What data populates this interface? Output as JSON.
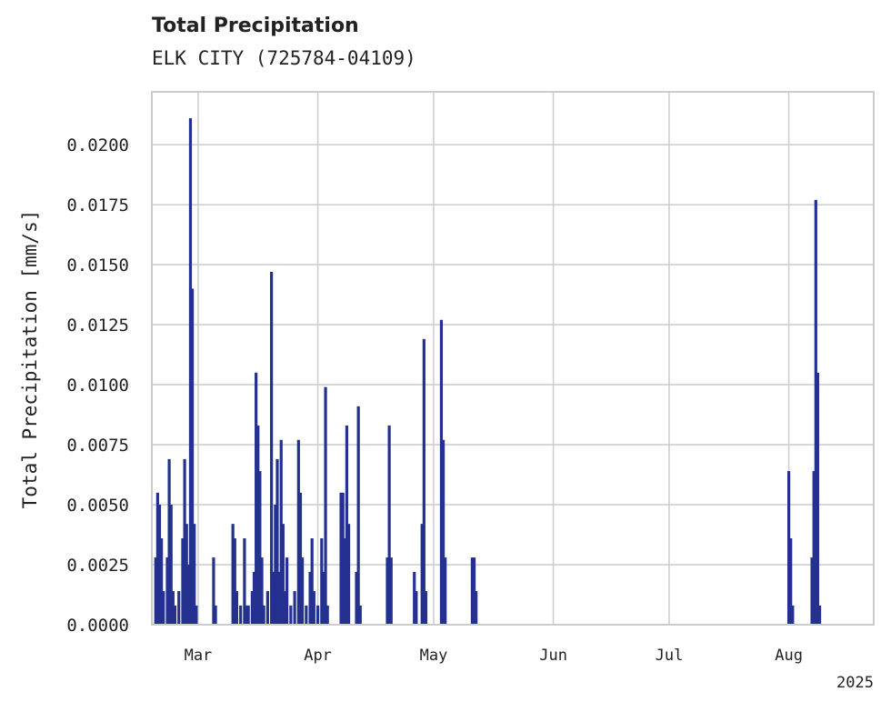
{
  "chart_data": {
    "type": "bar",
    "title": "Total Precipitation",
    "subtitle": "ELK CITY (725784-04109)",
    "xlabel": "",
    "ylabel": "Total Precipitation [mm/s]",
    "ylim": [
      0,
      0.0222
    ],
    "xlim": [
      "2025-02-17",
      "2025-08-23"
    ],
    "yticks": [
      "0.0000",
      "0.0025",
      "0.0050",
      "0.0075",
      "0.0100",
      "0.0125",
      "0.0150",
      "0.0175",
      "0.0200"
    ],
    "xticks": [
      {
        "date": "2025-03-01",
        "label": "Mar"
      },
      {
        "date": "2025-04-01",
        "label": "Apr"
      },
      {
        "date": "2025-05-01",
        "label": "May"
      },
      {
        "date": "2025-06-01",
        "label": "Jun"
      },
      {
        "date": "2025-07-01",
        "label": "Jul"
      },
      {
        "date": "2025-08-01",
        "label": "Aug"
      }
    ],
    "year_label": "2025",
    "grid": true,
    "color": "#24318f",
    "points": [
      {
        "x": "2025-02-18",
        "y": 0.0028
      },
      {
        "x": "2025-02-18T12:00",
        "y": 0.0055
      },
      {
        "x": "2025-02-19",
        "y": 0.005
      },
      {
        "x": "2025-02-19T12:00",
        "y": 0.0036
      },
      {
        "x": "2025-02-20",
        "y": 0.0014
      },
      {
        "x": "2025-02-21",
        "y": 0.0028
      },
      {
        "x": "2025-02-21T12:00",
        "y": 0.0069
      },
      {
        "x": "2025-02-22",
        "y": 0.005
      },
      {
        "x": "2025-02-22T12:00",
        "y": 0.0014
      },
      {
        "x": "2025-02-23",
        "y": 0.0008
      },
      {
        "x": "2025-02-24",
        "y": 0.0014
      },
      {
        "x": "2025-02-25",
        "y": 0.0036
      },
      {
        "x": "2025-02-25T12:00",
        "y": 0.0069
      },
      {
        "x": "2025-02-26",
        "y": 0.0042
      },
      {
        "x": "2025-02-26T12:00",
        "y": 0.0025
      },
      {
        "x": "2025-02-27",
        "y": 0.0211
      },
      {
        "x": "2025-02-27T12:00",
        "y": 0.014
      },
      {
        "x": "2025-02-28",
        "y": 0.0042
      },
      {
        "x": "2025-02-28T12:00",
        "y": 0.0008
      },
      {
        "x": "2025-03-05",
        "y": 0.0028
      },
      {
        "x": "2025-03-05T12:00",
        "y": 0.0008
      },
      {
        "x": "2025-03-10",
        "y": 0.0042
      },
      {
        "x": "2025-03-10T12:00",
        "y": 0.0036
      },
      {
        "x": "2025-03-11",
        "y": 0.0014
      },
      {
        "x": "2025-03-12",
        "y": 0.0008
      },
      {
        "x": "2025-03-13",
        "y": 0.0036
      },
      {
        "x": "2025-03-13T12:00",
        "y": 0.0008
      },
      {
        "x": "2025-03-14",
        "y": 0.0008
      },
      {
        "x": "2025-03-15",
        "y": 0.0014
      },
      {
        "x": "2025-03-15T12:00",
        "y": 0.0022
      },
      {
        "x": "2025-03-16",
        "y": 0.0105
      },
      {
        "x": "2025-03-16T12:00",
        "y": 0.0083
      },
      {
        "x": "2025-03-17",
        "y": 0.0064
      },
      {
        "x": "2025-03-17T12:00",
        "y": 0.0028
      },
      {
        "x": "2025-03-18",
        "y": 0.0008
      },
      {
        "x": "2025-03-19",
        "y": 0.0014
      },
      {
        "x": "2025-03-20",
        "y": 0.0147
      },
      {
        "x": "2025-03-20T12:00",
        "y": 0.0022
      },
      {
        "x": "2025-03-21",
        "y": 0.005
      },
      {
        "x": "2025-03-21T12:00",
        "y": 0.0069
      },
      {
        "x": "2025-03-22",
        "y": 0.0022
      },
      {
        "x": "2025-03-22T12:00",
        "y": 0.0077
      },
      {
        "x": "2025-03-23",
        "y": 0.0042
      },
      {
        "x": "2025-03-23T12:00",
        "y": 0.0014
      },
      {
        "x": "2025-03-24",
        "y": 0.0028
      },
      {
        "x": "2025-03-25",
        "y": 0.0008
      },
      {
        "x": "2025-03-26",
        "y": 0.0014
      },
      {
        "x": "2025-03-27",
        "y": 0.0077
      },
      {
        "x": "2025-03-27T12:00",
        "y": 0.0055
      },
      {
        "x": "2025-03-28",
        "y": 0.0028
      },
      {
        "x": "2025-03-29",
        "y": 0.0008
      },
      {
        "x": "2025-03-30",
        "y": 0.0022
      },
      {
        "x": "2025-03-30T12:00",
        "y": 0.0036
      },
      {
        "x": "2025-03-31",
        "y": 0.0014
      },
      {
        "x": "2025-04-01",
        "y": 0.0008
      },
      {
        "x": "2025-04-02",
        "y": 0.0036
      },
      {
        "x": "2025-04-02T12:00",
        "y": 0.0022
      },
      {
        "x": "2025-04-03",
        "y": 0.0099
      },
      {
        "x": "2025-04-03T12:00",
        "y": 0.0008
      },
      {
        "x": "2025-04-07",
        "y": 0.0055
      },
      {
        "x": "2025-04-07T12:00",
        "y": 0.0055
      },
      {
        "x": "2025-04-08",
        "y": 0.0036
      },
      {
        "x": "2025-04-08T12:00",
        "y": 0.0083
      },
      {
        "x": "2025-04-09",
        "y": 0.0042
      },
      {
        "x": "2025-04-11",
        "y": 0.0022
      },
      {
        "x": "2025-04-11T12:00",
        "y": 0.0091
      },
      {
        "x": "2025-04-12",
        "y": 0.0008
      },
      {
        "x": "2025-04-19",
        "y": 0.0028
      },
      {
        "x": "2025-04-19T12:00",
        "y": 0.0083
      },
      {
        "x": "2025-04-20",
        "y": 0.0028
      },
      {
        "x": "2025-04-26",
        "y": 0.0022
      },
      {
        "x": "2025-04-26T12:00",
        "y": 0.0014
      },
      {
        "x": "2025-04-28",
        "y": 0.0042
      },
      {
        "x": "2025-04-28T12:00",
        "y": 0.0119
      },
      {
        "x": "2025-04-29",
        "y": 0.0014
      },
      {
        "x": "2025-05-03",
        "y": 0.0127
      },
      {
        "x": "2025-05-03T12:00",
        "y": 0.0077
      },
      {
        "x": "2025-05-04",
        "y": 0.0028
      },
      {
        "x": "2025-05-11",
        "y": 0.0028
      },
      {
        "x": "2025-05-11T12:00",
        "y": 0.0028
      },
      {
        "x": "2025-05-12",
        "y": 0.0014
      },
      {
        "x": "2025-08-01",
        "y": 0.0064
      },
      {
        "x": "2025-08-01T12:00",
        "y": 0.0036
      },
      {
        "x": "2025-08-02",
        "y": 0.0008
      },
      {
        "x": "2025-08-07",
        "y": 0.0028
      },
      {
        "x": "2025-08-07T12:00",
        "y": 0.0064
      },
      {
        "x": "2025-08-08",
        "y": 0.0177
      },
      {
        "x": "2025-08-08T12:00",
        "y": 0.0105
      },
      {
        "x": "2025-08-09",
        "y": 0.0008
      }
    ]
  }
}
